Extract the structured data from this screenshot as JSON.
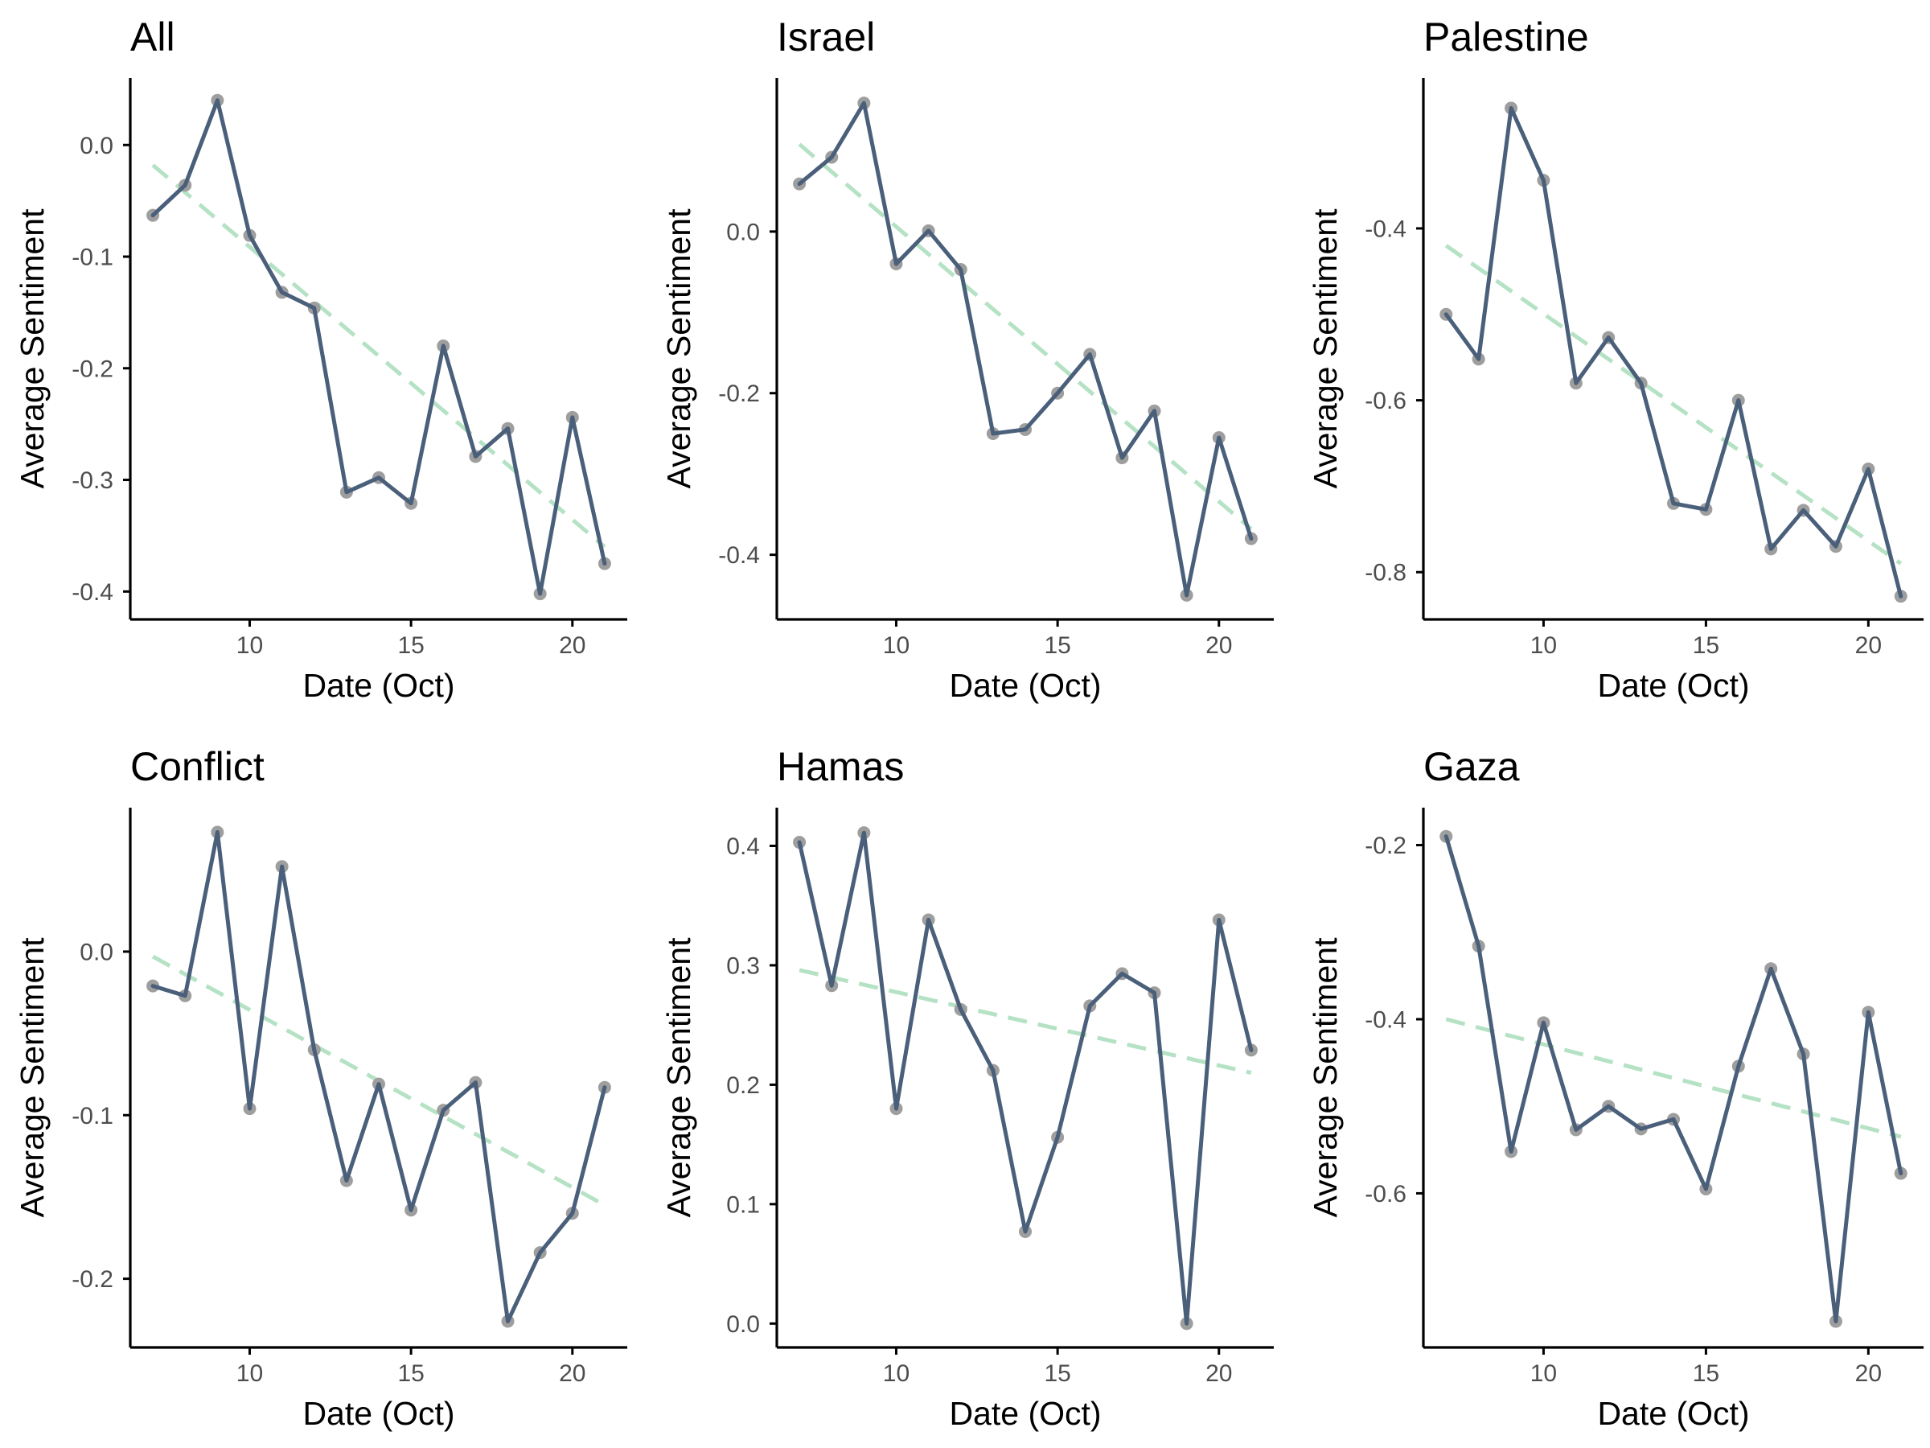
{
  "colors": {
    "line": "#4a5f7a",
    "point": "#9e9e9e",
    "trend": "#b5e2c4",
    "axis": "#000000",
    "tick_text": "#4d4d4d"
  },
  "chart_data": [
    {
      "type": "line",
      "title": "All",
      "xlabel": "Date (Oct)",
      "ylabel": "Average Sentiment",
      "xlim": [
        6.3,
        21.7
      ],
      "ylim": [
        -0.425,
        0.06
      ],
      "xticks": [
        10,
        15,
        20
      ],
      "xtick_labels": [
        "10",
        "15",
        "20"
      ],
      "yticks": [
        0.0,
        -0.1,
        -0.2,
        -0.3,
        -0.4
      ],
      "ytick_labels": [
        "0.0",
        "-0.1",
        "-0.2",
        "-0.3",
        "-0.4"
      ],
      "x": [
        7,
        8,
        9,
        10,
        11,
        12,
        13,
        14,
        15,
        16,
        17,
        18,
        19,
        20,
        21
      ],
      "y": [
        -0.063,
        -0.036,
        0.04,
        -0.081,
        -0.132,
        -0.146,
        -0.311,
        -0.298,
        -0.321,
        -0.18,
        -0.279,
        -0.254,
        -0.402,
        -0.244,
        -0.375
      ],
      "trend": {
        "style": "dashed",
        "x": [
          7,
          21
        ],
        "y": [
          -0.018,
          -0.36
        ]
      },
      "grid": false
    },
    {
      "type": "line",
      "title": "Israel",
      "xlabel": "Date (Oct)",
      "ylabel": "Average Sentiment",
      "xlim": [
        6.3,
        21.7
      ],
      "ylim": [
        -0.48,
        0.19
      ],
      "xticks": [
        10,
        15,
        20
      ],
      "xtick_labels": [
        "10",
        "15",
        "20"
      ],
      "yticks": [
        0.0,
        -0.2,
        -0.4
      ],
      "ytick_labels": [
        "0.0",
        "-0.2",
        "-0.4"
      ],
      "x": [
        7,
        8,
        9,
        10,
        11,
        12,
        13,
        14,
        15,
        16,
        17,
        18,
        19,
        20,
        21
      ],
      "y": [
        0.059,
        0.092,
        0.159,
        -0.04,
        0.001,
        -0.047,
        -0.25,
        -0.245,
        -0.2,
        -0.152,
        -0.28,
        -0.222,
        -0.45,
        -0.255,
        -0.38
      ],
      "trend": {
        "style": "dashed",
        "x": [
          7,
          21
        ],
        "y": [
          0.108,
          -0.368
        ]
      },
      "grid": false
    },
    {
      "type": "line",
      "title": "Palestine",
      "xlabel": "Date (Oct)",
      "ylabel": "Average Sentiment",
      "xlim": [
        6.3,
        21.7
      ],
      "ylim": [
        -0.855,
        -0.225
      ],
      "xticks": [
        10,
        15,
        20
      ],
      "xtick_labels": [
        "10",
        "15",
        "20"
      ],
      "yticks": [
        -0.4,
        -0.6,
        -0.8
      ],
      "ytick_labels": [
        "-0.4",
        "-0.6",
        "-0.8"
      ],
      "x": [
        7,
        8,
        9,
        10,
        11,
        12,
        13,
        14,
        15,
        16,
        17,
        18,
        19,
        20,
        21
      ],
      "y": [
        -0.5,
        -0.552,
        -0.26,
        -0.344,
        -0.58,
        -0.527,
        -0.58,
        -0.72,
        -0.727,
        -0.6,
        -0.773,
        -0.728,
        -0.77,
        -0.68,
        -0.828
      ],
      "trend": {
        "style": "dashed",
        "x": [
          7,
          21
        ],
        "y": [
          -0.42,
          -0.79
        ]
      },
      "grid": false
    },
    {
      "type": "line",
      "title": "Conflict",
      "xlabel": "Date (Oct)",
      "ylabel": "Average Sentiment",
      "xlim": [
        6.3,
        21.7
      ],
      "ylim": [
        -0.242,
        0.088
      ],
      "xticks": [
        10,
        15,
        20
      ],
      "xtick_labels": [
        "10",
        "15",
        "20"
      ],
      "yticks": [
        0.0,
        -0.1,
        -0.2
      ],
      "ytick_labels": [
        "0.0",
        "-0.1",
        "-0.2"
      ],
      "x": [
        7,
        8,
        9,
        10,
        11,
        12,
        13,
        14,
        15,
        16,
        17,
        18,
        19,
        20,
        21
      ],
      "y": [
        -0.021,
        -0.027,
        0.073,
        -0.096,
        0.052,
        -0.06,
        -0.14,
        -0.081,
        -0.158,
        -0.097,
        -0.08,
        -0.226,
        -0.184,
        -0.16,
        -0.083
      ],
      "trend": {
        "style": "dashed",
        "x": [
          7,
          21
        ],
        "y": [
          -0.003,
          -0.155
        ]
      },
      "grid": false
    },
    {
      "type": "line",
      "title": "Hamas",
      "xlabel": "Date (Oct)",
      "ylabel": "Average Sentiment",
      "xlim": [
        6.3,
        21.7
      ],
      "ylim": [
        -0.02,
        0.432
      ],
      "xticks": [
        10,
        15,
        20
      ],
      "xtick_labels": [
        "10",
        "15",
        "20"
      ],
      "yticks": [
        0.4,
        0.3,
        0.2,
        0.1,
        0.0
      ],
      "ytick_labels": [
        "0.4",
        "0.3",
        "0.2",
        "0.1",
        "0.0"
      ],
      "x": [
        7,
        8,
        9,
        10,
        11,
        12,
        13,
        14,
        15,
        16,
        17,
        18,
        19,
        20,
        21
      ],
      "y": [
        0.403,
        0.283,
        0.411,
        0.18,
        0.338,
        0.263,
        0.212,
        0.077,
        0.156,
        0.266,
        0.293,
        0.277,
        0.0,
        0.338,
        0.229
      ],
      "trend": {
        "style": "dashed",
        "x": [
          7,
          21
        ],
        "y": [
          0.296,
          0.21
        ]
      },
      "grid": false
    },
    {
      "type": "line",
      "title": "Gaza",
      "xlabel": "Date (Oct)",
      "ylabel": "Average Sentiment",
      "xlim": [
        6.3,
        21.7
      ],
      "ylim": [
        -0.777,
        -0.157
      ],
      "xticks": [
        10,
        15,
        20
      ],
      "xtick_labels": [
        "10",
        "15",
        "20"
      ],
      "yticks": [
        -0.2,
        -0.4,
        -0.6
      ],
      "ytick_labels": [
        "-0.2",
        "-0.4",
        "-0.6"
      ],
      "x": [
        7,
        8,
        9,
        10,
        11,
        12,
        13,
        14,
        15,
        16,
        17,
        18,
        19,
        20,
        21
      ],
      "y": [
        -0.19,
        -0.316,
        -0.552,
        -0.404,
        -0.527,
        -0.5,
        -0.526,
        -0.515,
        -0.595,
        -0.454,
        -0.342,
        -0.44,
        -0.747,
        -0.392,
        -0.577
      ],
      "trend": {
        "style": "dashed",
        "x": [
          7,
          21
        ],
        "y": [
          -0.4,
          -0.535
        ]
      },
      "grid": false
    }
  ]
}
